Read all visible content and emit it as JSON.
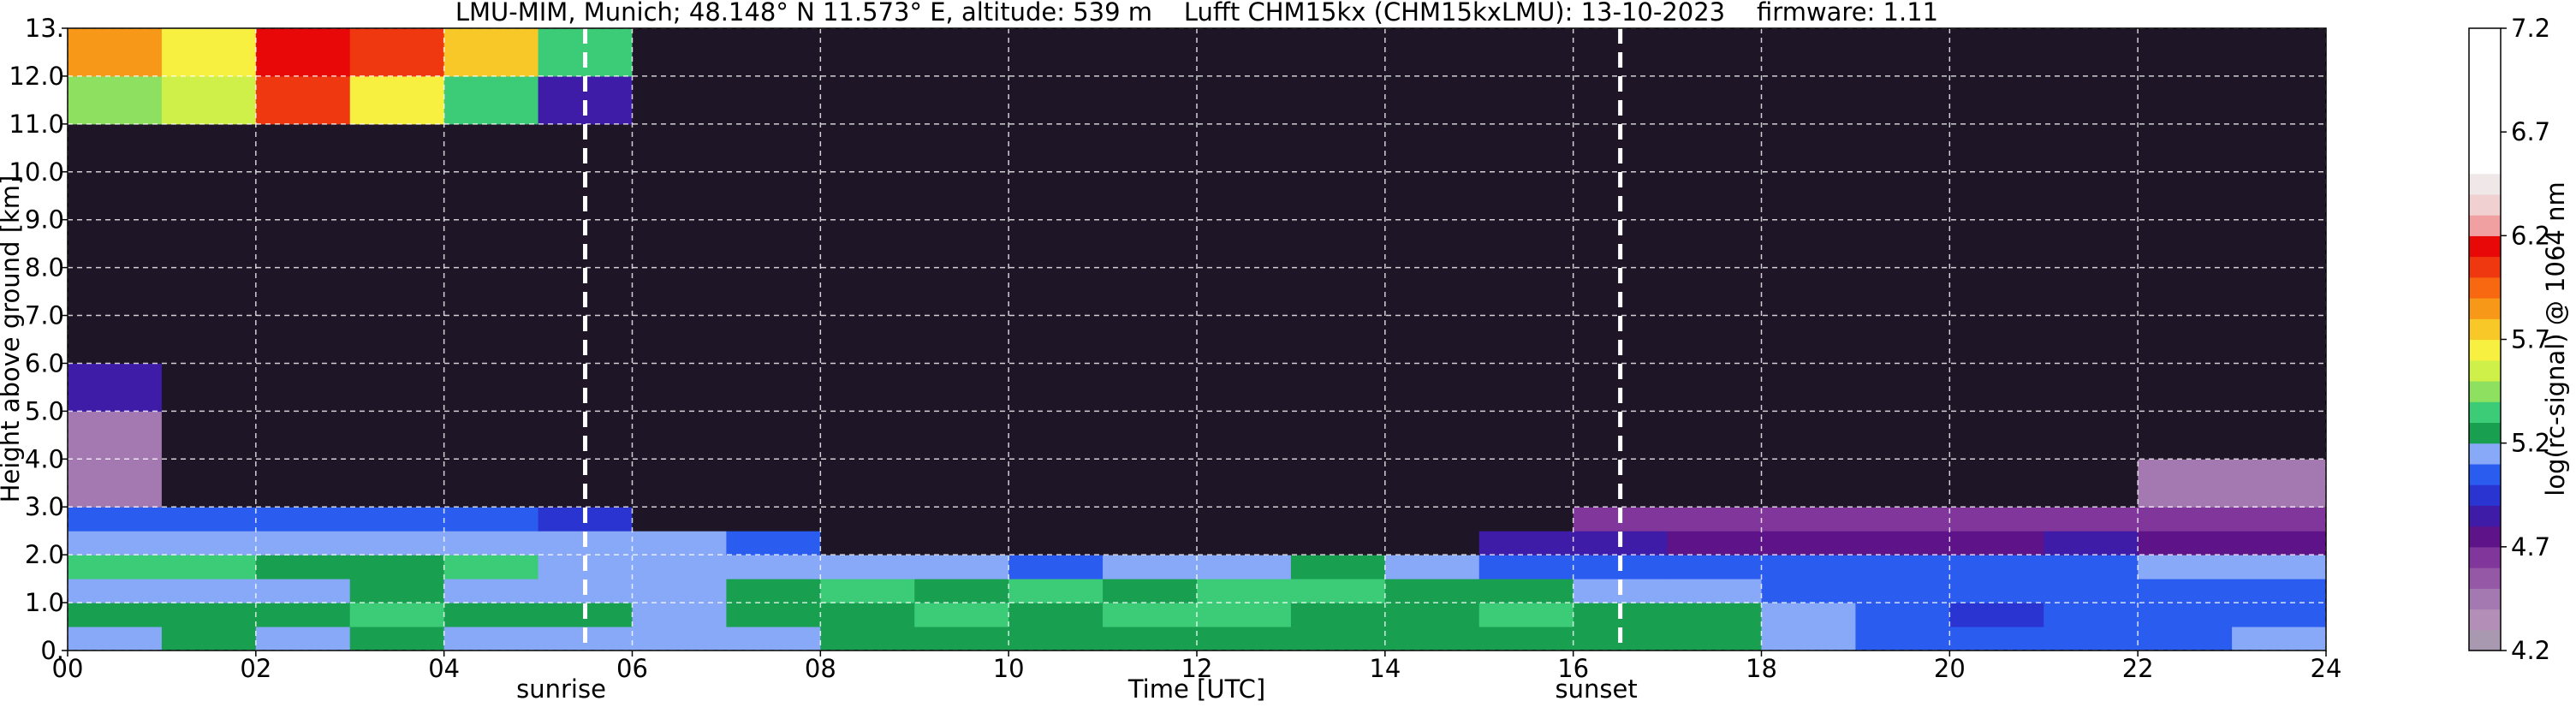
{
  "chart_data": {
    "type": "heatmap",
    "title": "LMU-MIM, Munich; 48.148° N 11.573° E, altitude: 539 m    Lufft CHM15kx (CHM15kxLMU): 13-10-2023    firmware: 1.11",
    "x_label": "Time [UTC]",
    "y_label": "Height above ground [km]",
    "xlim": [
      0,
      24
    ],
    "ylim": [
      0,
      13
    ],
    "xticks": [
      {
        "value": 0,
        "label": "00"
      },
      {
        "value": 2,
        "label": "02"
      },
      {
        "value": 4,
        "label": "04"
      },
      {
        "value": 6,
        "label": "06"
      },
      {
        "value": 8,
        "label": "08"
      },
      {
        "value": 10,
        "label": "10"
      },
      {
        "value": 12,
        "label": "12"
      },
      {
        "value": 14,
        "label": "14"
      },
      {
        "value": 16,
        "label": "16"
      },
      {
        "value": 18,
        "label": "18"
      },
      {
        "value": 20,
        "label": "20"
      },
      {
        "value": 22,
        "label": "22"
      },
      {
        "value": 24,
        "label": "24"
      }
    ],
    "yticks": [
      {
        "value": 0,
        "label": "0."
      },
      {
        "value": 1,
        "label": "1.0"
      },
      {
        "value": 2,
        "label": "2.0"
      },
      {
        "value": 3,
        "label": "3.0"
      },
      {
        "value": 4,
        "label": "4.0"
      },
      {
        "value": 5,
        "label": "5.0"
      },
      {
        "value": 6,
        "label": "6.0"
      },
      {
        "value": 7,
        "label": "7.0"
      },
      {
        "value": 8,
        "label": "8.0"
      },
      {
        "value": 9,
        "label": "9.0"
      },
      {
        "value": 10,
        "label": "10.0"
      },
      {
        "value": 11,
        "label": "11.0"
      },
      {
        "value": 12,
        "label": "12.0"
      },
      {
        "value": 13,
        "label": "13."
      }
    ],
    "grid": true,
    "grid_color": "#ffffff",
    "x_bins": [
      0,
      1,
      2,
      3,
      4,
      5,
      6,
      7,
      8,
      9,
      10,
      11,
      12,
      13,
      14,
      15,
      16,
      17,
      18,
      19,
      20,
      21,
      22,
      23,
      24
    ],
    "y_bins": [
      0,
      0.5,
      1,
      1.5,
      2,
      2.5,
      3,
      4,
      5,
      6,
      7,
      8,
      9,
      10,
      11,
      12,
      13
    ],
    "z": [
      [
        5.1,
        5.2,
        5.1,
        5.2,
        5.1,
        5.1,
        5.1,
        5.1,
        5.2,
        5.2,
        5.2,
        5.2,
        5.2,
        5.2,
        5.2,
        5.2,
        5.2,
        5.2,
        5.1,
        5.0,
        5.0,
        5.0,
        5.0,
        5.1
      ],
      [
        5.2,
        5.2,
        5.2,
        5.3,
        5.2,
        5.2,
        5.1,
        5.2,
        5.2,
        5.3,
        5.2,
        5.3,
        5.3,
        5.2,
        5.2,
        5.3,
        5.2,
        5.2,
        5.1,
        5.0,
        4.9,
        5.0,
        5.0,
        5.0
      ],
      [
        5.1,
        5.1,
        5.1,
        5.2,
        5.1,
        5.1,
        5.1,
        5.2,
        5.3,
        5.2,
        5.3,
        5.2,
        5.3,
        5.3,
        5.2,
        5.2,
        5.1,
        5.1,
        5.0,
        5.0,
        5.0,
        5.0,
        5.0,
        5.0
      ],
      [
        5.3,
        5.3,
        5.2,
        5.2,
        5.3,
        5.1,
        5.1,
        5.1,
        5.1,
        5.1,
        5.0,
        5.1,
        5.1,
        5.2,
        5.1,
        5.0,
        5.0,
        5.0,
        5.0,
        5.0,
        5.0,
        5.0,
        5.1,
        5.1
      ],
      [
        5.1,
        5.1,
        5.1,
        5.1,
        5.1,
        5.1,
        5.1,
        5.0,
        4.0,
        4.0,
        4.0,
        4.0,
        4.0,
        4.0,
        4.0,
        4.8,
        4.8,
        4.7,
        4.7,
        4.7,
        4.7,
        4.8,
        4.7,
        4.7
      ],
      [
        5.0,
        5.0,
        5.0,
        5.0,
        5.0,
        4.9,
        4.0,
        4.0,
        4.0,
        4.0,
        4.0,
        4.0,
        4.0,
        4.0,
        4.0,
        4.0,
        4.6,
        4.6,
        4.6,
        4.6,
        4.6,
        4.6,
        4.6,
        4.6
      ],
      [
        4.4,
        4.0,
        4.0,
        4.0,
        4.0,
        4.0,
        4.0,
        4.0,
        4.0,
        4.0,
        4.0,
        4.0,
        4.0,
        4.0,
        4.0,
        4.0,
        4.0,
        4.0,
        4.0,
        4.0,
        4.0,
        4.0,
        4.4,
        4.4
      ],
      [
        4.4,
        4.0,
        4.0,
        4.0,
        4.0,
        4.0,
        4.0,
        4.0,
        4.0,
        4.0,
        4.0,
        4.0,
        4.0,
        4.0,
        4.0,
        4.0,
        4.0,
        4.0,
        4.0,
        4.0,
        4.0,
        4.0,
        4.0,
        4.0
      ],
      [
        4.8,
        4.0,
        4.0,
        4.0,
        4.0,
        4.0,
        4.0,
        4.0,
        4.0,
        4.0,
        4.0,
        4.0,
        4.0,
        4.0,
        4.0,
        4.0,
        4.0,
        4.0,
        4.0,
        4.0,
        4.0,
        4.0,
        4.0,
        4.0
      ],
      [
        4.0,
        4.0,
        4.0,
        4.0,
        4.0,
        4.0,
        4.0,
        4.0,
        4.0,
        4.0,
        4.0,
        4.0,
        4.0,
        4.0,
        4.0,
        4.0,
        4.0,
        4.0,
        4.0,
        4.0,
        4.0,
        4.0,
        4.0,
        4.0
      ],
      [
        4.0,
        4.0,
        4.0,
        4.0,
        4.0,
        4.0,
        4.0,
        4.0,
        4.0,
        4.0,
        4.0,
        4.0,
        4.0,
        4.0,
        4.0,
        4.0,
        4.0,
        4.0,
        4.0,
        4.0,
        4.0,
        4.0,
        4.0,
        4.0
      ],
      [
        4.0,
        4.0,
        4.0,
        4.0,
        4.0,
        4.0,
        4.0,
        4.0,
        4.0,
        4.0,
        4.0,
        4.0,
        4.0,
        4.0,
        4.0,
        4.0,
        4.0,
        4.0,
        4.0,
        4.0,
        4.0,
        4.0,
        4.0,
        4.0
      ],
      [
        4.0,
        4.0,
        4.0,
        4.0,
        4.0,
        4.0,
        4.0,
        4.0,
        4.0,
        4.0,
        4.0,
        4.0,
        4.0,
        4.0,
        4.0,
        4.0,
        4.0,
        4.0,
        4.0,
        4.0,
        4.0,
        4.0,
        4.0,
        4.0
      ],
      [
        4.0,
        4.0,
        4.0,
        4.0,
        4.0,
        4.0,
        4.0,
        4.0,
        4.0,
        4.0,
        4.0,
        4.0,
        4.0,
        4.0,
        4.0,
        4.0,
        4.0,
        4.0,
        4.0,
        4.0,
        4.0,
        4.0,
        4.0,
        4.0
      ],
      [
        5.4,
        5.5,
        6.0,
        5.6,
        5.3,
        4.8,
        4.0,
        4.0,
        4.0,
        4.0,
        4.0,
        4.0,
        4.0,
        4.0,
        4.0,
        4.0,
        4.0,
        4.0,
        4.0,
        4.0,
        4.0,
        4.0,
        4.0,
        4.0
      ],
      [
        5.8,
        5.6,
        6.1,
        6.0,
        5.7,
        5.3,
        4.0,
        4.0,
        4.0,
        4.0,
        4.0,
        4.0,
        4.0,
        4.0,
        4.0,
        4.0,
        4.0,
        4.0,
        4.0,
        4.0,
        4.0,
        4.0,
        4.0,
        4.0
      ]
    ],
    "markers": [
      {
        "x": 5.5,
        "label": "sunrise"
      },
      {
        "x": 16.5,
        "label": "sunset"
      }
    ],
    "colorbar": {
      "label": "log(rc-signal) @ 1064 nm",
      "clim": [
        4.2,
        7.2
      ],
      "ticks": [
        4.2,
        4.7,
        5.2,
        5.7,
        6.2,
        6.7,
        7.2
      ],
      "under_color": "#1e1626",
      "colors": [
        "#a898b0",
        "#b38fb8",
        "#a478b0",
        "#9458a6",
        "#80369a",
        "#5e1488",
        "#3e1ca8",
        "#2a34d0",
        "#2a5cf0",
        "#88a8f8",
        "#18a050",
        "#3ccc78",
        "#8ee060",
        "#cff048",
        "#f8f040",
        "#f8c828",
        "#f89818",
        "#f86810",
        "#f03810",
        "#e80808",
        "#f0a0a0",
        "#f0d0d0",
        "#f0e8e8",
        "#ffffff",
        "#ffffff",
        "#ffffff",
        "#ffffff",
        "#ffffff",
        "#ffffff",
        "#ffffff"
      ]
    }
  }
}
